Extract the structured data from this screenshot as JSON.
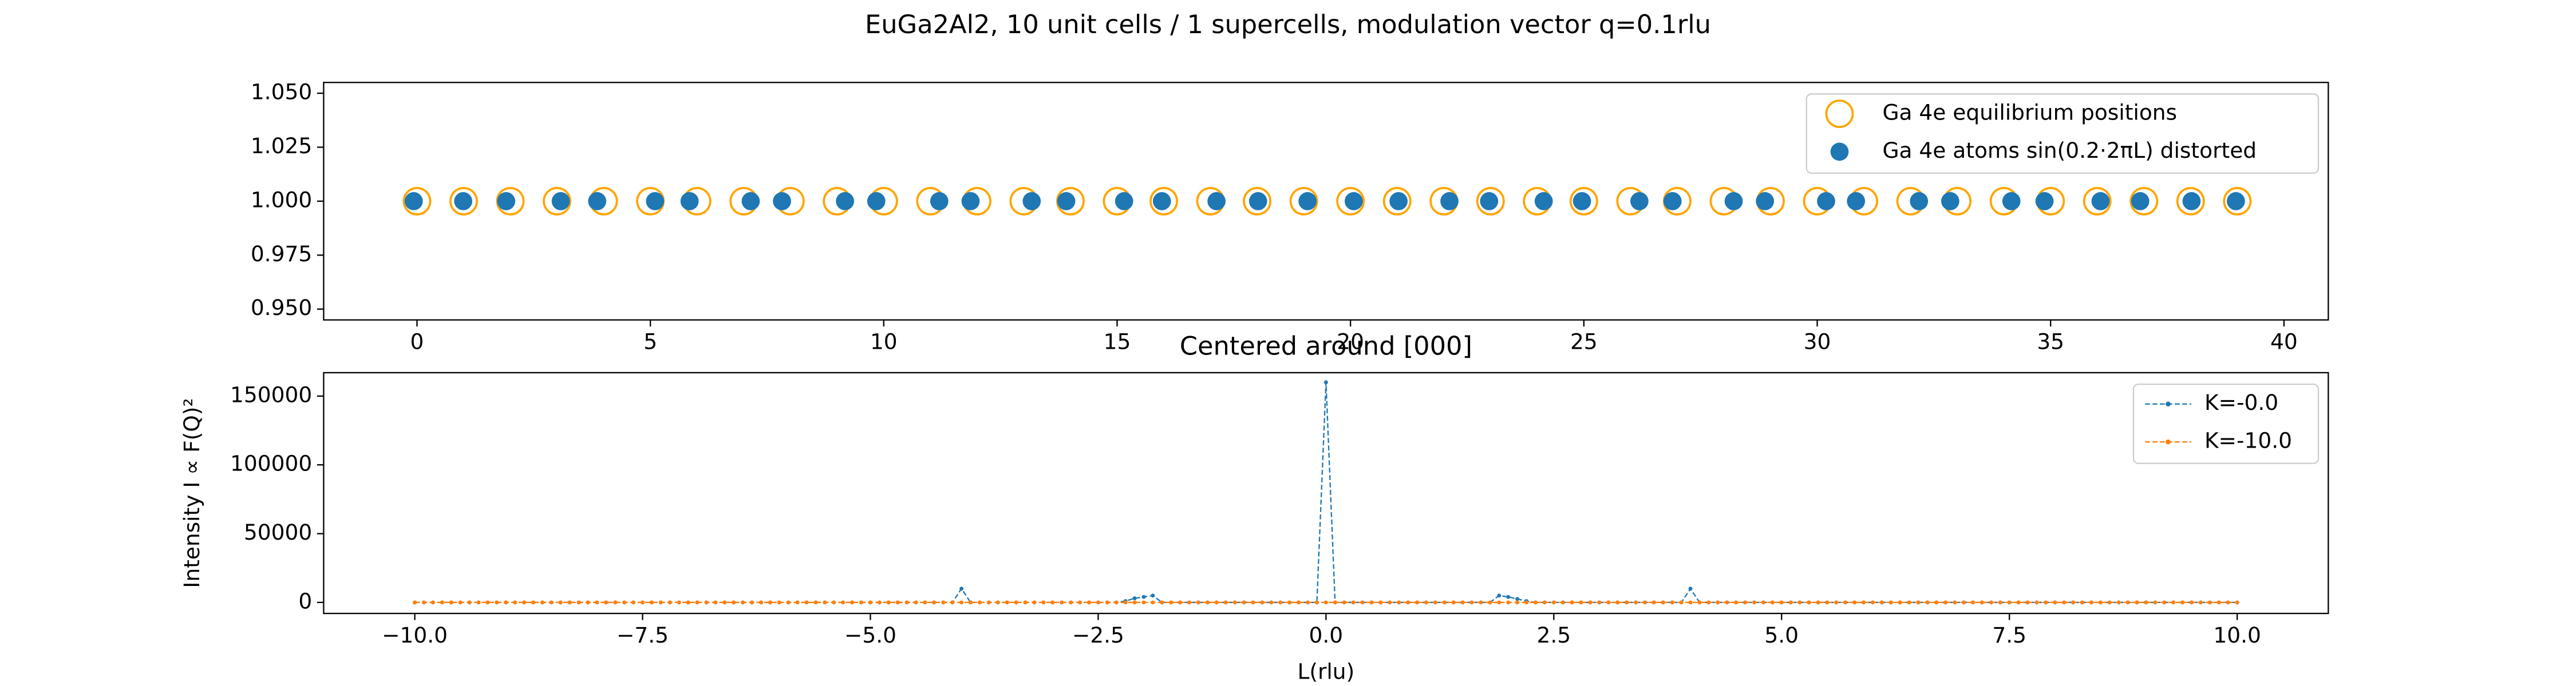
{
  "title": "EuGa2Al2, 10 unit cells / 1 supercells, modulation vector q=0.1rlu",
  "chart_data": [
    {
      "type": "scatter",
      "legend": "upper right",
      "xlim": [
        -2.0,
        40.95
      ],
      "xticks": [
        0,
        5,
        10,
        15,
        20,
        25,
        30,
        35,
        40
      ],
      "ylim": [
        0.945,
        1.055
      ],
      "yticks": [
        {
          "value": 0.95,
          "label": "0.950"
        },
        {
          "value": 0.975,
          "label": "0.975"
        },
        {
          "value": 1.0,
          "label": "1.000"
        },
        {
          "value": 1.025,
          "label": "1.025"
        },
        {
          "value": 1.05,
          "label": "1.050"
        }
      ],
      "series": [
        {
          "name": "Ga 4e equilibrium positions",
          "color": "#ffa500",
          "marker": "open-circle",
          "x": [
            0,
            1,
            2,
            3,
            4,
            5,
            6,
            7,
            8,
            9,
            10,
            11,
            12,
            13,
            14,
            15,
            16,
            17,
            18,
            19,
            20,
            21,
            22,
            23,
            24,
            25,
            26,
            27,
            28,
            29,
            30,
            31,
            32,
            33,
            34,
            35,
            36,
            37,
            38,
            39
          ],
          "values": [
            1,
            1,
            1,
            1,
            1,
            1,
            1,
            1,
            1,
            1,
            1,
            1,
            1,
            1,
            1,
            1,
            1,
            1,
            1,
            1,
            1,
            1,
            1,
            1,
            1,
            1,
            1,
            1,
            1,
            1,
            1,
            1,
            1,
            1,
            1,
            1,
            1,
            1,
            1,
            1
          ]
        },
        {
          "name": "Ga 4e atoms sin(0.2·2πL) distorted",
          "color": "#1f77b4",
          "marker": "dot",
          "x": [
            -0.07,
            0.99,
            1.91,
            3.08,
            3.86,
            5.1,
            5.84,
            7.15,
            7.82,
            9.17,
            9.84,
            11.19,
            11.86,
            13.17,
            13.91,
            15.15,
            15.96,
            17.13,
            18.02,
            19.08,
            20.07,
            21.03,
            22.12,
            22.97,
            24.14,
            24.96,
            26.19,
            26.9,
            28.21,
            28.88,
            30.19,
            30.83,
            32.18,
            32.85,
            34.16,
            34.87,
            36.07,
            36.92,
            38.02,
            38.97
          ],
          "values": [
            1,
            1,
            1,
            1,
            1,
            1,
            1,
            1,
            1,
            1,
            1,
            1,
            1,
            1,
            1,
            1,
            1,
            1,
            1,
            1,
            1,
            1,
            1,
            1,
            1,
            1,
            1,
            1,
            1,
            1,
            1,
            1,
            1,
            1,
            1,
            1,
            1,
            1,
            1,
            1
          ]
        }
      ]
    },
    {
      "type": "line",
      "title": "Centered around [000]",
      "x_label": "L(rlu)",
      "y_label": "Intensity I ∝ F(Q)²",
      "legend": "upper right",
      "xlim": [
        -11.0,
        11.0
      ],
      "xticks": [
        {
          "value": -10,
          "label": "−10.0"
        },
        {
          "value": -7.5,
          "label": "−7.5"
        },
        {
          "value": -5,
          "label": "−5.0"
        },
        {
          "value": -2.5,
          "label": "−2.5"
        },
        {
          "value": 0,
          "label": "0.0"
        },
        2.5,
        {
          "value": 5,
          "label": "5.0"
        },
        7.5,
        {
          "value": 10,
          "label": "10.0"
        }
      ],
      "ylim": [
        -8000,
        167000
      ],
      "yticks": [
        0,
        50000,
        100000,
        150000
      ],
      "x": [
        -10.0,
        -9.9,
        -9.8,
        -9.7,
        -9.6,
        -9.5,
        -9.4,
        -9.3,
        -9.2,
        -9.1,
        -9.0,
        -8.9,
        -8.8,
        -8.7,
        -8.6,
        -8.5,
        -8.4,
        -8.3,
        -8.2,
        -8.1,
        -8.0,
        -7.9,
        -7.8,
        -7.7,
        -7.6,
        -7.5,
        -7.4,
        -7.3,
        -7.2,
        -7.1,
        -7.0,
        -6.9,
        -6.8,
        -6.7,
        -6.6,
        -6.5,
        -6.4,
        -6.3,
        -6.2,
        -6.1,
        -6.0,
        -5.9,
        -5.8,
        -5.7,
        -5.6,
        -5.5,
        -5.4,
        -5.3,
        -5.2,
        -5.1,
        -5.0,
        -4.9,
        -4.8,
        -4.7,
        -4.6,
        -4.5,
        -4.4,
        -4.3,
        -4.2,
        -4.1,
        -4.0,
        -3.9,
        -3.8,
        -3.7,
        -3.6,
        -3.5,
        -3.4,
        -3.3,
        -3.2,
        -3.1,
        -3.0,
        -2.9,
        -2.8,
        -2.7,
        -2.6,
        -2.5,
        -2.4,
        -2.3,
        -2.2,
        -2.1,
        -2.0,
        -1.9,
        -1.8,
        -1.7,
        -1.6,
        -1.5,
        -1.4,
        -1.3,
        -1.2,
        -1.1,
        -1.0,
        -0.9,
        -0.8,
        -0.7,
        -0.6,
        -0.5,
        -0.4,
        -0.3,
        -0.2,
        -0.1,
        0.0,
        0.1,
        0.2,
        0.3,
        0.4,
        0.5,
        0.6,
        0.7,
        0.8,
        0.9,
        1.0,
        1.1,
        1.2,
        1.3,
        1.4,
        1.5,
        1.6,
        1.7,
        1.8,
        1.9,
        2.0,
        2.1,
        2.2,
        2.3,
        2.4,
        2.5,
        2.6,
        2.7,
        2.8,
        2.9,
        3.0,
        3.1,
        3.2,
        3.3,
        3.4,
        3.5,
        3.6,
        3.7,
        3.8,
        3.9,
        4.0,
        4.1,
        4.2,
        4.3,
        4.4,
        4.5,
        4.6,
        4.7,
        4.8,
        4.9,
        5.0,
        5.1,
        5.2,
        5.3,
        5.4,
        5.5,
        5.6,
        5.7,
        5.8,
        5.9,
        6.0,
        6.1,
        6.2,
        6.3,
        6.4,
        6.5,
        6.6,
        6.7,
        6.8,
        6.9,
        7.0,
        7.1,
        7.2,
        7.3,
        7.4,
        7.5,
        7.6,
        7.7,
        7.8,
        7.9,
        8.0,
        8.1,
        8.2,
        8.3,
        8.4,
        8.5,
        8.6,
        8.7,
        8.8,
        8.9,
        9.0,
        9.1,
        9.2,
        9.3,
        9.4,
        9.5,
        9.6,
        9.7,
        9.8,
        9.9,
        10.0
      ],
      "series": [
        {
          "name": "K=-0.0",
          "color": "#1f77b4",
          "values": [
            0,
            0,
            0,
            0,
            0,
            0,
            0,
            0,
            0,
            0,
            0,
            0,
            0,
            0,
            0,
            0,
            0,
            0,
            0,
            0,
            0,
            0,
            0,
            0,
            0,
            0,
            0,
            0,
            0,
            0,
            0,
            0,
            0,
            0,
            0,
            0,
            0,
            0,
            0,
            0,
            0,
            0,
            0,
            0,
            0,
            0,
            0,
            0,
            0,
            0,
            0,
            0,
            0,
            0,
            0,
            0,
            0,
            0,
            0,
            0,
            10000,
            0,
            0,
            0,
            0,
            0,
            0,
            0,
            0,
            0,
            0,
            0,
            0,
            0,
            0,
            0,
            0,
            0,
            1000,
            3000,
            4000,
            5000,
            0,
            0,
            0,
            0,
            0,
            0,
            0,
            0,
            0,
            0,
            0,
            0,
            0,
            0,
            0,
            0,
            0,
            0,
            160000,
            0,
            0,
            0,
            0,
            0,
            0,
            0,
            0,
            0,
            0,
            0,
            0,
            0,
            0,
            0,
            0,
            0,
            0,
            5000,
            4000,
            2500,
            1000,
            0,
            0,
            0,
            0,
            0,
            0,
            0,
            0,
            0,
            0,
            0,
            0,
            0,
            0,
            0,
            0,
            0,
            10000,
            0,
            0,
            0,
            0,
            0,
            0,
            0,
            0,
            0,
            0,
            0,
            0,
            0,
            0,
            0,
            0,
            0,
            0,
            0,
            0,
            0,
            0,
            0,
            0,
            0,
            0,
            0,
            0,
            0,
            0,
            0,
            0,
            0,
            0,
            0,
            0,
            0,
            0,
            0,
            0,
            0,
            0,
            0,
            0,
            0,
            0,
            0,
            0,
            0,
            0,
            0,
            0,
            0,
            0,
            0,
            0,
            0,
            0,
            0,
            0
          ]
        },
        {
          "name": "K=-10.0",
          "color": "#ff7f0e",
          "values": [
            0,
            0,
            0,
            0,
            0,
            0,
            0,
            0,
            0,
            0,
            0,
            0,
            0,
            0,
            0,
            0,
            0,
            0,
            0,
            0,
            0,
            0,
            0,
            0,
            0,
            0,
            0,
            0,
            0,
            0,
            0,
            0,
            0,
            0,
            0,
            0,
            0,
            0,
            0,
            0,
            0,
            0,
            0,
            0,
            0,
            0,
            0,
            0,
            0,
            0,
            0,
            0,
            0,
            0,
            0,
            0,
            0,
            0,
            0,
            0,
            0,
            0,
            0,
            0,
            0,
            0,
            0,
            0,
            0,
            0,
            0,
            0,
            0,
            0,
            0,
            0,
            0,
            0,
            0,
            0,
            0,
            0,
            0,
            0,
            0,
            0,
            0,
            0,
            0,
            0,
            0,
            0,
            0,
            0,
            0,
            0,
            0,
            0,
            0,
            0,
            0,
            0,
            0,
            0,
            0,
            0,
            0,
            0,
            0,
            0,
            0,
            0,
            0,
            0,
            0,
            0,
            0,
            0,
            0,
            0,
            0,
            0,
            0,
            0,
            0,
            0,
            0,
            0,
            0,
            0,
            0,
            0,
            0,
            0,
            0,
            0,
            0,
            0,
            0,
            0,
            0,
            0,
            0,
            0,
            0,
            0,
            0,
            0,
            0,
            0,
            0,
            0,
            0,
            0,
            0,
            0,
            0,
            0,
            0,
            0,
            0,
            0,
            0,
            0,
            0,
            0,
            0,
            0,
            0,
            0,
            0,
            0,
            0,
            0,
            0,
            0,
            0,
            0,
            0,
            0,
            0,
            0,
            0,
            0,
            0,
            0,
            0,
            0,
            0,
            0,
            0,
            0,
            0,
            0,
            0,
            0,
            0,
            0,
            0,
            0,
            0
          ]
        }
      ]
    }
  ]
}
